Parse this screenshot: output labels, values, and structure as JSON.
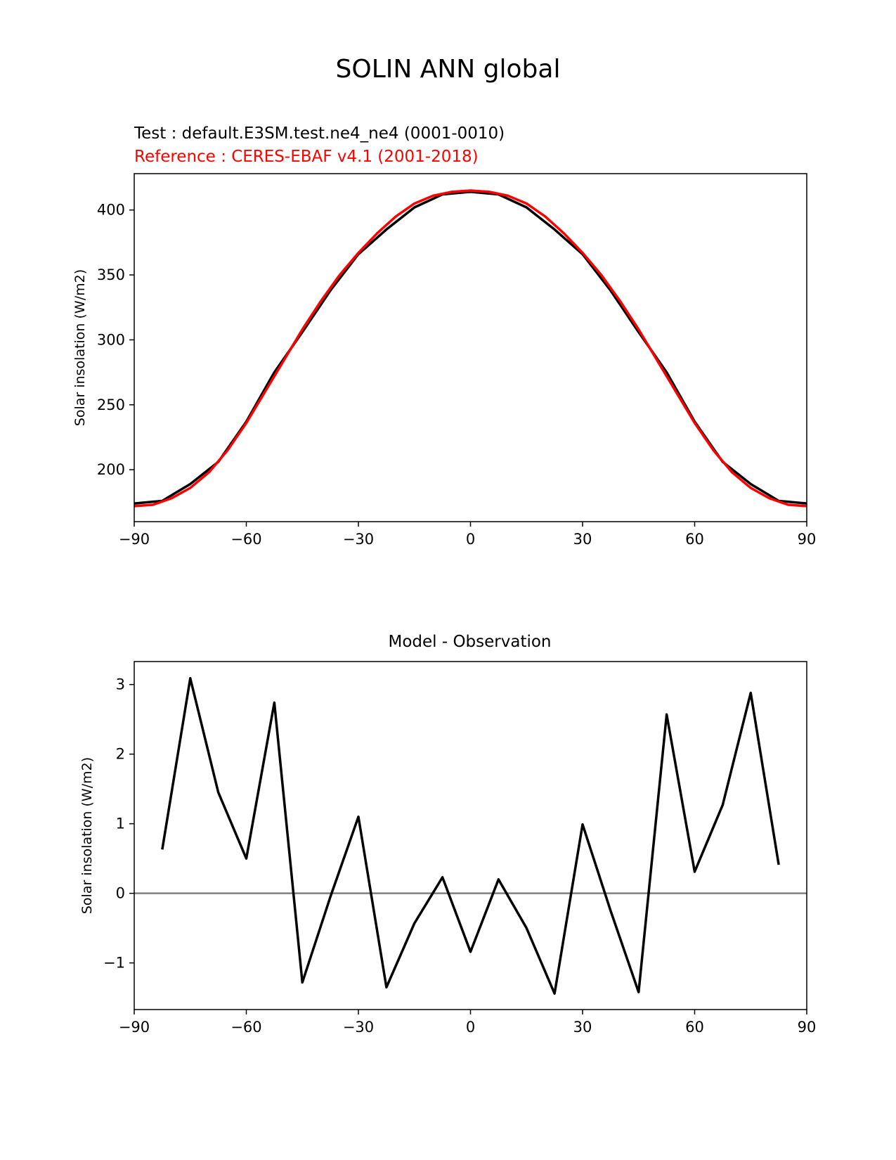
{
  "figure": {
    "title": "SOLIN ANN global"
  },
  "chart_data": [
    {
      "type": "line",
      "subtitle_test": "Test : default.E3SM.test.ne4_ne4 (0001-0010)",
      "subtitle_reference": "Reference : CERES-EBAF v4.1 (2001-2018)",
      "xlabel": "",
      "ylabel": "Solar insolation (W/m2)",
      "xlim": [
        -90,
        90
      ],
      "ylim": [
        160,
        428
      ],
      "xticks": [
        -90,
        -60,
        -30,
        0,
        30,
        60,
        90
      ],
      "xtick_labels": [
        "−90",
        "−60",
        "−30",
        "0",
        "30",
        "60",
        "90"
      ],
      "yticks": [
        200,
        250,
        300,
        350,
        400
      ],
      "yticks_labels": [
        "200",
        "250",
        "300",
        "350",
        "400"
      ],
      "grid": false,
      "series": [
        {
          "color": "#000000",
          "x": [
            -90,
            -82.5,
            -75,
            -67.5,
            -60,
            -52.5,
            -45,
            -37.5,
            -30,
            -22.5,
            -15,
            -7.5,
            0,
            7.5,
            15,
            22.5,
            30,
            37.5,
            45,
            52.5,
            60,
            67.5,
            75,
            82.5,
            90
          ],
          "y": [
            174,
            176,
            189,
            206,
            237,
            275,
            306,
            338,
            366,
            385,
            402,
            412,
            414,
            412,
            402,
            385,
            366,
            338,
            306,
            275,
            237,
            206,
            189,
            176,
            174
          ]
        },
        {
          "color": "#ff0000",
          "x": [
            -90,
            -85,
            -80,
            -75,
            -70,
            -65,
            -60,
            -55,
            -50,
            -45,
            -40,
            -35,
            -30,
            -25,
            -20,
            -15,
            -10,
            -5,
            0,
            5,
            10,
            15,
            20,
            25,
            30,
            35,
            40,
            45,
            50,
            55,
            60,
            65,
            70,
            75,
            80,
            85,
            90
          ],
          "y": [
            172,
            173,
            178,
            186,
            198,
            215,
            236,
            260,
            284,
            308,
            330,
            350,
            367,
            382,
            395,
            405,
            411,
            414,
            415,
            414,
            411,
            405,
            395,
            382,
            367,
            350,
            330,
            308,
            284,
            260,
            236,
            215,
            198,
            186,
            178,
            173,
            172
          ]
        }
      ]
    },
    {
      "type": "line",
      "title": "Model - Observation",
      "xlabel": "",
      "ylabel": "Solar insolation (W/m2)",
      "xlim": [
        -90,
        90
      ],
      "ylim": [
        -1.67,
        3.33
      ],
      "xticks": [
        -90,
        -60,
        -30,
        0,
        30,
        60,
        90
      ],
      "xtick_labels": [
        "−90",
        "−60",
        "−30",
        "0",
        "30",
        "60",
        "90"
      ],
      "yticks": [
        -1,
        0,
        1,
        2,
        3
      ],
      "yticks_labels": [
        "−1",
        "0",
        "1",
        "2",
        "3"
      ],
      "grid": false,
      "zero_line_color": "#808080",
      "series": [
        {
          "color": "#000000",
          "x": [
            -82.5,
            -75,
            -67.5,
            -60,
            -52.5,
            -45,
            -37.5,
            -30,
            -22.5,
            -15,
            -7.5,
            0,
            7.5,
            15,
            22.5,
            30,
            37.5,
            45,
            52.5,
            60,
            67.5,
            75,
            82.5
          ],
          "y": [
            0.63,
            3.09,
            1.45,
            0.5,
            2.74,
            -1.28,
            -0.05,
            1.1,
            -1.35,
            -0.43,
            0.23,
            -0.84,
            0.2,
            -0.5,
            -1.44,
            0.99,
            -0.25,
            -1.42,
            2.57,
            0.31,
            1.27,
            2.88,
            0.41
          ]
        }
      ]
    }
  ]
}
